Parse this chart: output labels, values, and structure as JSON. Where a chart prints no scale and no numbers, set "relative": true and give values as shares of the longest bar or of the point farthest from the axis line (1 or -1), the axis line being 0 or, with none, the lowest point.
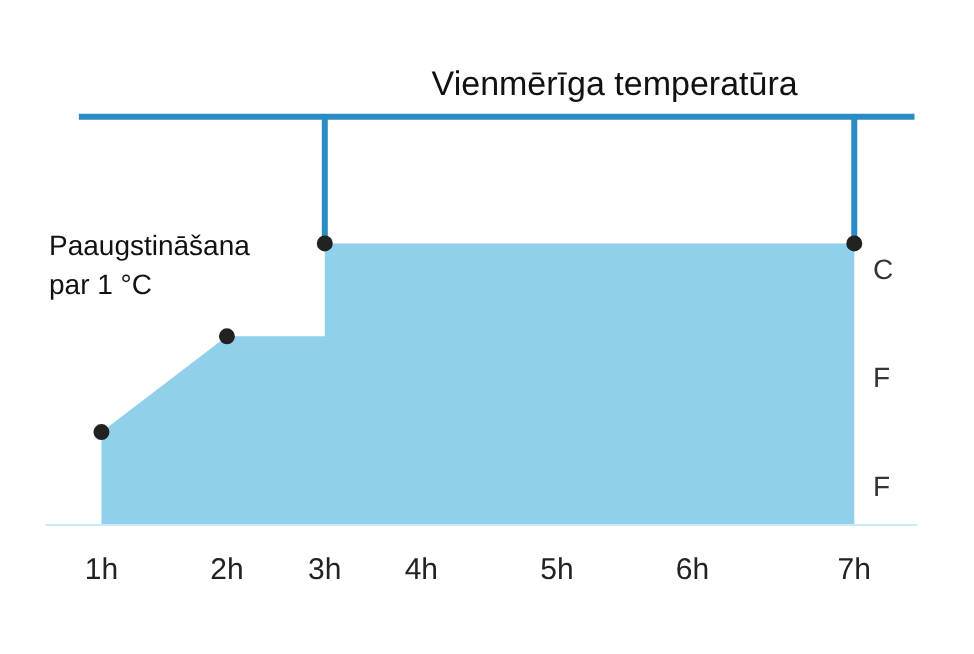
{
  "chart_data": {
    "type": "area",
    "relative": true,
    "title": "Vienmērīga temperatūra",
    "x": [
      1,
      2,
      2.78,
      2.78,
      7
    ],
    "xlim": [
      0.55,
      7.5
    ],
    "xticks": [
      {
        "value": 1,
        "label": "1h"
      },
      {
        "value": 2,
        "label": "2h"
      },
      {
        "value": 2.78,
        "label": "3h"
      },
      {
        "value": 3.55,
        "label": "4h"
      },
      {
        "value": 4.63,
        "label": "5h"
      },
      {
        "value": 5.71,
        "label": "6h"
      },
      {
        "value": 7,
        "label": "7h"
      }
    ],
    "series": [
      {
        "color": "#7cc8e8",
        "values": [
          0.33,
          0.67,
          0.67,
          1,
          1
        ]
      },
      {
        "type": "scatter",
        "color": "#222222",
        "marker": "circle",
        "x": [
          1,
          2,
          2.78,
          7
        ],
        "values": [
          0.33,
          0.67,
          1,
          1
        ]
      }
    ],
    "annotations": [
      "Paaugstināšana par 1 °C",
      "C",
      "F",
      "F"
    ],
    "grid": false
  }
}
